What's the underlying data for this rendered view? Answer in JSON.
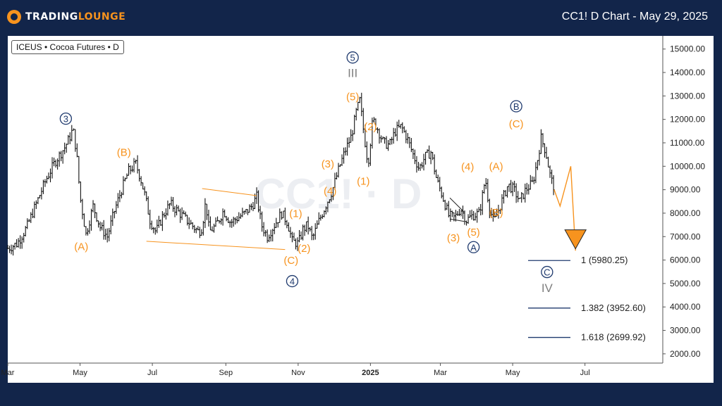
{
  "header": {
    "brand_part1": "TRADING",
    "brand_part2": "LOUNGE",
    "title": "CC1! D Chart - May 29, 2025"
  },
  "legend": {
    "text": "ICEUS • Cocoa Futures • D"
  },
  "watermark": "CC1! · D",
  "chart_data": {
    "type": "candlestick",
    "symbol": "CC1!",
    "timeframe": "D",
    "yaxis": {
      "min": 1400,
      "max": 15600,
      "ticks": [
        "15000.00",
        "14000.00",
        "13000.00",
        "12000.00",
        "11000.00",
        "10000.00",
        "9000.00",
        "8000.00",
        "7000.00",
        "6000.00",
        "5000.00",
        "4000.00",
        "3000.00",
        "2000.00"
      ]
    },
    "xaxis": {
      "ticks": [
        {
          "label": "Mar",
          "day": 0
        },
        {
          "label": "May",
          "day": 61
        },
        {
          "label": "Jul",
          "day": 122
        },
        {
          "label": "Sep",
          "day": 184
        },
        {
          "label": "Nov",
          "day": 245
        },
        {
          "label": "2025",
          "day": 306
        },
        {
          "label": "Mar",
          "day": 365
        },
        {
          "label": "May",
          "day": 426
        },
        {
          "label": "Jul",
          "day": 487
        }
      ],
      "range_days": [
        0,
        552
      ]
    },
    "price_path": [
      [
        0,
        6500
      ],
      [
        8,
        6700
      ],
      [
        16,
        7400
      ],
      [
        24,
        8400
      ],
      [
        32,
        9400
      ],
      [
        40,
        10200
      ],
      [
        48,
        10800
      ],
      [
        52,
        11200
      ],
      [
        55,
        11600
      ],
      [
        58,
        10600
      ],
      [
        61,
        8700
      ],
      [
        66,
        7100
      ],
      [
        72,
        8300
      ],
      [
        78,
        7400
      ],
      [
        84,
        7000
      ],
      [
        90,
        8100
      ],
      [
        96,
        9000
      ],
      [
        102,
        9800
      ],
      [
        108,
        10100
      ],
      [
        112,
        9500
      ],
      [
        116,
        8700
      ],
      [
        120,
        7700
      ],
      [
        125,
        7200
      ],
      [
        131,
        7900
      ],
      [
        137,
        8400
      ],
      [
        143,
        8100
      ],
      [
        149,
        7800
      ],
      [
        155,
        7500
      ],
      [
        161,
        7200
      ],
      [
        164,
        7400
      ],
      [
        167,
        8500
      ],
      [
        170,
        7200
      ],
      [
        176,
        7500
      ],
      [
        182,
        8100
      ],
      [
        188,
        7600
      ],
      [
        194,
        7800
      ],
      [
        200,
        8000
      ],
      [
        206,
        8300
      ],
      [
        210,
        8700
      ],
      [
        214,
        7500
      ],
      [
        219,
        7000
      ],
      [
        225,
        7500
      ],
      [
        231,
        8000
      ],
      [
        236,
        7600
      ],
      [
        240,
        6800
      ],
      [
        245,
        6700
      ],
      [
        249,
        7300
      ],
      [
        253,
        7500
      ],
      [
        257,
        6900
      ],
      [
        262,
        7600
      ],
      [
        268,
        8300
      ],
      [
        274,
        9000
      ],
      [
        280,
        10000
      ],
      [
        285,
        10700
      ],
      [
        290,
        11300
      ],
      [
        294,
        12300
      ],
      [
        297,
        12800
      ],
      [
        301,
        11200
      ],
      [
        304,
        10100
      ],
      [
        308,
        12000
      ],
      [
        312,
        11600
      ],
      [
        317,
        11000
      ],
      [
        322,
        10900
      ],
      [
        327,
        11500
      ],
      [
        332,
        11700
      ],
      [
        337,
        11200
      ],
      [
        342,
        10500
      ],
      [
        347,
        9900
      ],
      [
        352,
        10400
      ],
      [
        357,
        10600
      ],
      [
        362,
        9400
      ],
      [
        367,
        8700
      ],
      [
        372,
        7900
      ],
      [
        377,
        7800
      ],
      [
        382,
        8200
      ],
      [
        387,
        7700
      ],
      [
        392,
        7900
      ],
      [
        398,
        8000
      ],
      [
        403,
        9500
      ],
      [
        406,
        8300
      ],
      [
        410,
        7600
      ],
      [
        416,
        8400
      ],
      [
        422,
        9200
      ],
      [
        427,
        9000
      ],
      [
        432,
        8500
      ],
      [
        437,
        9000
      ],
      [
        443,
        9300
      ],
      [
        447,
        10300
      ],
      [
        450,
        11200
      ],
      [
        454,
        10600
      ],
      [
        458,
        9500
      ],
      [
        461,
        9100
      ]
    ],
    "waves": [
      {
        "label": "3",
        "style": "circle",
        "day": 49,
        "price": 12030
      },
      {
        "label": "(A)",
        "style": "orange",
        "day": 62,
        "price": 6580
      },
      {
        "label": "(B)",
        "style": "orange",
        "day": 98,
        "price": 10600
      },
      {
        "label": "(C)",
        "style": "orange",
        "day": 239,
        "price": 5980
      },
      {
        "label": "4",
        "style": "circle",
        "day": 240,
        "price": 5100
      },
      {
        "label": "(1)",
        "style": "orange",
        "day": 243,
        "price": 7990
      },
      {
        "label": "(2)",
        "style": "orange",
        "day": 250,
        "price": 6500
      },
      {
        "label": "(3)",
        "style": "orange",
        "day": 270,
        "price": 10100
      },
      {
        "label": "(4)",
        "style": "orange",
        "day": 272,
        "price": 8950
      },
      {
        "label": "5",
        "style": "circle",
        "day": 291,
        "price": 14640
      },
      {
        "label": "III",
        "style": "grey",
        "day": 291,
        "price": 13990
      },
      {
        "label": "(5)",
        "style": "orange",
        "day": 291,
        "price": 12970
      },
      {
        "label": "(1)",
        "style": "orange",
        "day": 300,
        "price": 9360
      },
      {
        "label": "(2)",
        "style": "orange",
        "day": 306,
        "price": 11690
      },
      {
        "label": "(3)",
        "style": "orange",
        "day": 376,
        "price": 6950
      },
      {
        "label": "(5)",
        "style": "orange",
        "day": 393,
        "price": 7190
      },
      {
        "label": "A",
        "style": "circle",
        "day": 393,
        "price": 6550
      },
      {
        "label": "(4)",
        "style": "orange",
        "day": 388,
        "price": 9980
      },
      {
        "label": "(A)",
        "style": "orange",
        "day": 412,
        "price": 10000
      },
      {
        "label": "(B)",
        "style": "orange",
        "day": 412,
        "price": 8030
      },
      {
        "label": "B",
        "style": "circle",
        "day": 429,
        "price": 12560
      },
      {
        "label": "(C)",
        "style": "orange",
        "day": 429,
        "price": 11810
      },
      {
        "label": "C",
        "style": "circle",
        "day": 455,
        "price": 5490
      },
      {
        "label": "IV",
        "style": "grey",
        "day": 455,
        "price": 4810
      }
    ],
    "fib_levels": [
      {
        "label": "1 (5980.25)",
        "price": 5980.25
      },
      {
        "label": "1.382 (3952.60)",
        "price": 3952.6
      },
      {
        "label": "1.618 (2699.92)",
        "price": 2699.92
      }
    ],
    "trendlines": [
      {
        "from": [
          164,
          9050
        ],
        "to": [
          210,
          8750
        ]
      },
      {
        "from": [
          117,
          6800
        ],
        "to": [
          234,
          6450
        ]
      },
      {
        "from": [
          373,
          8650
        ],
        "to": [
          385,
          8050
        ]
      },
      {
        "from": [
          373,
          7750
        ],
        "to": [
          385,
          7650
        ]
      }
    ],
    "projection_path": [
      [
        461,
        9000
      ],
      [
        466,
        8300
      ],
      [
        475,
        10000
      ],
      [
        479,
        6400
      ]
    ],
    "target": {
      "day": 479,
      "price": 6480
    }
  }
}
